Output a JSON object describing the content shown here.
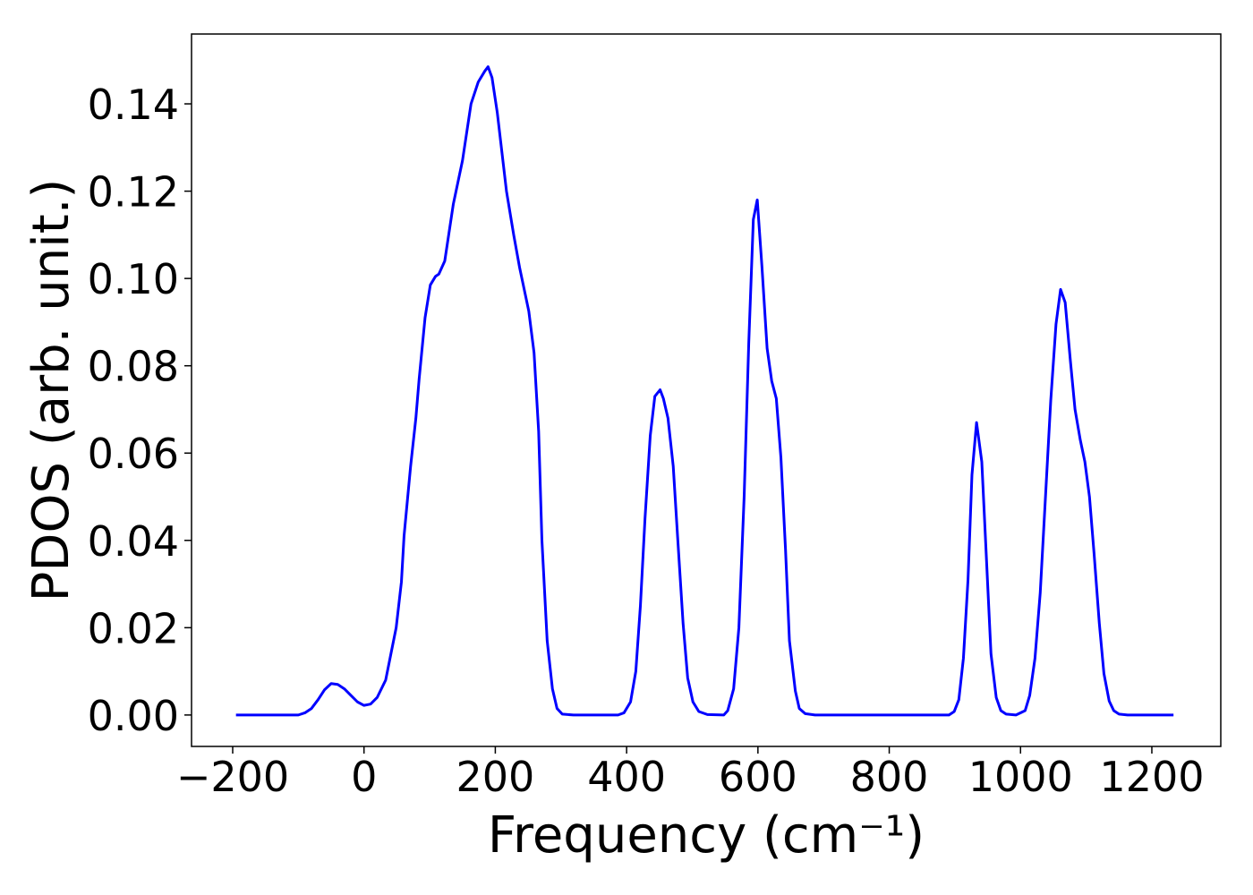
{
  "chart_data": {
    "type": "line",
    "x_label": "Frequency (cm⁻¹)",
    "y_label": "PDOS (arb. unit.)",
    "color": "#0000ff",
    "x": [
      -195,
      -100,
      -90,
      -80,
      -70,
      -60,
      -50,
      -40,
      -30,
      -20,
      -10,
      0,
      10,
      20,
      33,
      41,
      49,
      57,
      61,
      71,
      79,
      84,
      93,
      101,
      109,
      114,
      123,
      136,
      150,
      163,
      174,
      184,
      189,
      195,
      203,
      217,
      228,
      237,
      251,
      259,
      266,
      271,
      279,
      287,
      294,
      302,
      319,
      387,
      396,
      406,
      414,
      421,
      428,
      436,
      443,
      451,
      456,
      463,
      471,
      478,
      486,
      493,
      501,
      510,
      523,
      548,
      554,
      563,
      571,
      579,
      586,
      593,
      599,
      606,
      614,
      621,
      628,
      635,
      642,
      648,
      657,
      663,
      672,
      687,
      891,
      899,
      906,
      913,
      920,
      926,
      933,
      941,
      948,
      955,
      963,
      970,
      978,
      993,
      1007,
      1014,
      1022,
      1030,
      1038,
      1046,
      1054,
      1061,
      1068,
      1076,
      1083,
      1091,
      1098,
      1105,
      1112,
      1120,
      1127,
      1135,
      1142,
      1150,
      1163,
      1233
    ],
    "values": [
      0,
      0,
      0.0005,
      0.0015,
      0.0035,
      0.0058,
      0.0072,
      0.007,
      0.006,
      0.0045,
      0.003,
      0.0022,
      0.0025,
      0.004,
      0.008,
      0.014,
      0.02,
      0.0305,
      0.041,
      0.057,
      0.068,
      0.077,
      0.091,
      0.0985,
      0.1005,
      0.101,
      0.104,
      0.117,
      0.127,
      0.14,
      0.145,
      0.1475,
      0.1485,
      0.146,
      0.138,
      0.12,
      0.11,
      0.1025,
      0.0925,
      0.083,
      0.065,
      0.04,
      0.017,
      0.006,
      0.0015,
      0.0002,
      0,
      0,
      0.0005,
      0.003,
      0.01,
      0.025,
      0.045,
      0.064,
      0.073,
      0.0745,
      0.0725,
      0.068,
      0.057,
      0.04,
      0.021,
      0.0085,
      0.003,
      0.0008,
      0.0001,
      0,
      0.001,
      0.006,
      0.02,
      0.05,
      0.085,
      0.1135,
      0.118,
      0.103,
      0.084,
      0.0765,
      0.0725,
      0.059,
      0.038,
      0.017,
      0.0055,
      0.0015,
      0.0003,
      0,
      0,
      0.0008,
      0.0035,
      0.013,
      0.031,
      0.055,
      0.067,
      0.058,
      0.036,
      0.014,
      0.004,
      0.001,
      0.0002,
      0,
      0.001,
      0.0045,
      0.013,
      0.028,
      0.05,
      0.072,
      0.0895,
      0.0975,
      0.0945,
      0.081,
      0.07,
      0.063,
      0.058,
      0.05,
      0.037,
      0.021,
      0.0095,
      0.0032,
      0.001,
      0.0002,
      0,
      0
    ],
    "xlim": [
      -262.7,
      1305
    ],
    "ylim": [
      -0.0072,
      0.156
    ],
    "xticks": [
      {
        "value": -200,
        "label": "−200"
      },
      0,
      200,
      400,
      600,
      800,
      1000,
      1200
    ],
    "yticks": [
      {
        "value": 0,
        "label": "0.00"
      },
      {
        "value": 0.02,
        "label": "0.02"
      },
      {
        "value": 0.04,
        "label": "0.04"
      },
      {
        "value": 0.06,
        "label": "0.06"
      },
      {
        "value": 0.08,
        "label": "0.08"
      },
      {
        "value": 0.1,
        "label": "0.10"
      },
      {
        "value": 0.12,
        "label": "0.12"
      },
      {
        "value": 0.14,
        "label": "0.14"
      }
    ]
  }
}
